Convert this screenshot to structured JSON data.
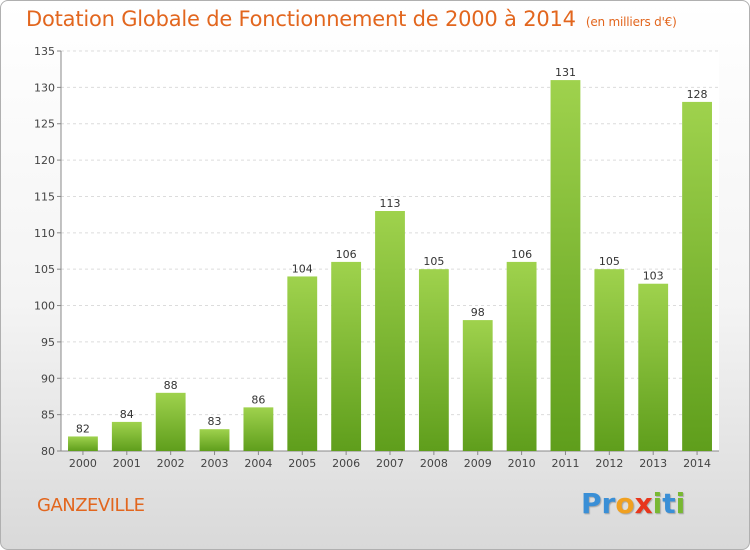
{
  "chart_data": {
    "type": "bar",
    "title": "Dotation Globale de Fonctionnement de 2000 à 2014",
    "subtitle": "(en milliers d'€)",
    "categories": [
      "2000",
      "2001",
      "2002",
      "2003",
      "2004",
      "2005",
      "2006",
      "2007",
      "2008",
      "2009",
      "2010",
      "2011",
      "2012",
      "2013",
      "2014"
    ],
    "values": [
      82,
      84,
      88,
      83,
      86,
      104,
      106,
      113,
      105,
      98,
      106,
      131,
      105,
      103,
      128
    ],
    "ylim": [
      80,
      135
    ],
    "yticks": [
      80,
      85,
      90,
      95,
      100,
      105,
      110,
      115,
      120,
      125,
      130,
      135
    ],
    "grid": true,
    "bar_color": "#7cbb2c"
  },
  "footer": {
    "commune": "GANZEVILLE",
    "logo_letters": [
      {
        "ch": "P",
        "color": "#3a8fd6"
      },
      {
        "ch": "r",
        "color": "#3a8fd6"
      },
      {
        "ch": "o",
        "color": "#f0a020"
      },
      {
        "ch": "x",
        "color": "#e8361c"
      },
      {
        "ch": "i",
        "color": "#78b832"
      },
      {
        "ch": "t",
        "color": "#3a8fd6"
      },
      {
        "ch": "i",
        "color": "#78b832"
      }
    ]
  }
}
